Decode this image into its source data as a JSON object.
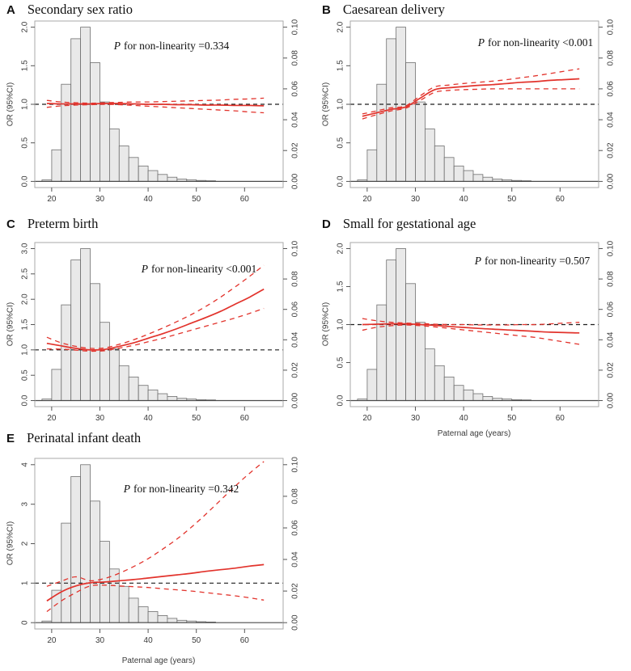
{
  "axes": {
    "y_label": "OR (95%CI)",
    "x_label": "Paternal age (years)",
    "p_italic": "P"
  },
  "colors": {
    "curve_red": "#e2332c",
    "hist_fill": "#e9e9e9",
    "hist_stroke": "#6f6f6f",
    "box_stroke": "#a9a9a9",
    "baseline": "#4a4a4a",
    "ref_dash": "#1f1f1f"
  },
  "histogram": {
    "bin_start": 18,
    "bin_width": 2,
    "right_axis": "relative frequency (0.00-0.10)",
    "densities": [
      0.001,
      0.0205,
      0.063,
      0.0925,
      0.1,
      0.077,
      0.0515,
      0.034,
      0.023,
      0.0155,
      0.01,
      0.007,
      0.0045,
      0.0027,
      0.0015,
      0.001,
      0.0006,
      0.0004
    ]
  },
  "chart_data": [
    {
      "type": "line",
      "letter": "A",
      "title": "Secondary sex ratio",
      "p_text": "for non-linearity =0.334",
      "xlim": [
        16.5,
        68
      ],
      "xticks": [
        20,
        30,
        40,
        50,
        60
      ],
      "ylim_left": [
        0,
        2
      ],
      "yticks_left": [
        "0.0",
        "0.5",
        "1.0",
        "1.5",
        "2.0"
      ],
      "yticks_right": [
        "0.00",
        "0.02",
        "0.04",
        "0.06",
        "0.08",
        "0.10"
      ],
      "ref_line": 1,
      "curve": {
        "x": [
          19,
          22,
          25,
          28,
          31,
          34,
          37,
          40,
          43,
          46,
          49,
          52,
          55,
          58,
          61,
          64
        ],
        "or": [
          1.01,
          1.005,
          1.005,
          1.005,
          1.01,
          1.01,
          1.005,
          1.0,
          1.0,
          0.995,
          0.995,
          0.99,
          0.99,
          0.985,
          0.985,
          0.98
        ],
        "ci_high": [
          1.05,
          1.03,
          1.02,
          1.015,
          1.02,
          1.025,
          1.03,
          1.03,
          1.035,
          1.04,
          1.045,
          1.05,
          1.055,
          1.065,
          1.07,
          1.08
        ],
        "ci_low": [
          0.96,
          0.98,
          0.99,
          0.995,
          1.0,
          0.995,
          0.985,
          0.975,
          0.965,
          0.955,
          0.945,
          0.935,
          0.925,
          0.915,
          0.9,
          0.89
        ]
      }
    },
    {
      "type": "line",
      "letter": "B",
      "title": "Caesarean delivery",
      "p_text": "for non-linearity <0.001",
      "xlim": [
        16.5,
        68
      ],
      "xticks": [
        20,
        30,
        40,
        50,
        60
      ],
      "ylim_left": [
        0,
        2
      ],
      "yticks_left": [
        "0.0",
        "0.5",
        "1.0",
        "1.5",
        "2.0"
      ],
      "yticks_right": [
        "0.00",
        "0.02",
        "0.04",
        "0.06",
        "0.08",
        "0.10"
      ],
      "ref_line": 1,
      "curve": {
        "x": [
          19,
          22,
          25,
          28,
          31,
          34,
          37,
          40,
          43,
          46,
          49,
          52,
          55,
          58,
          61,
          64
        ],
        "or": [
          0.845,
          0.89,
          0.935,
          0.965,
          1.08,
          1.19,
          1.215,
          1.23,
          1.245,
          1.255,
          1.27,
          1.285,
          1.295,
          1.31,
          1.32,
          1.33
        ],
        "ci_high": [
          0.875,
          0.915,
          0.955,
          0.98,
          1.11,
          1.225,
          1.25,
          1.27,
          1.285,
          1.3,
          1.32,
          1.345,
          1.37,
          1.4,
          1.43,
          1.46
        ],
        "ci_low": [
          0.81,
          0.865,
          0.915,
          0.95,
          1.05,
          1.155,
          1.18,
          1.19,
          1.195,
          1.2,
          1.2,
          1.2,
          1.2,
          1.2,
          1.2,
          1.2
        ]
      }
    },
    {
      "type": "line",
      "letter": "C",
      "title": "Preterm birth",
      "p_text": "for non-linearity <0.001",
      "xlim": [
        16.5,
        68
      ],
      "xticks": [
        20,
        30,
        40,
        50,
        60
      ],
      "ylim_left": [
        0,
        3
      ],
      "yticks_left": [
        "0.0",
        "0.5",
        "1.0",
        "1.5",
        "2.0",
        "2.5",
        "3.0"
      ],
      "yticks_right": [
        "0.00",
        "0.02",
        "0.04",
        "0.06",
        "0.08",
        "0.10"
      ],
      "ref_line": 1,
      "curve": {
        "x": [
          19,
          22,
          25,
          28,
          31,
          34,
          37,
          40,
          43,
          46,
          49,
          52,
          55,
          58,
          61,
          64
        ],
        "or": [
          1.13,
          1.08,
          1.03,
          1.0,
          1.01,
          1.07,
          1.14,
          1.23,
          1.32,
          1.42,
          1.53,
          1.64,
          1.76,
          1.9,
          2.04,
          2.2
        ],
        "ci_high": [
          1.25,
          1.14,
          1.07,
          1.03,
          1.04,
          1.11,
          1.2,
          1.31,
          1.43,
          1.56,
          1.7,
          1.86,
          2.04,
          2.24,
          2.45,
          2.67
        ],
        "ci_low": [
          1.02,
          1.015,
          0.995,
          0.975,
          0.985,
          1.035,
          1.09,
          1.16,
          1.23,
          1.31,
          1.39,
          1.47,
          1.55,
          1.63,
          1.72,
          1.82
        ]
      }
    },
    {
      "type": "line",
      "letter": "D",
      "title": "Small for gestational age",
      "p_text": "for non-linearity =0.507",
      "xlim": [
        16.5,
        68
      ],
      "xticks": [
        20,
        30,
        40,
        50,
        60
      ],
      "ylim_left": [
        0,
        2
      ],
      "yticks_left": [
        "0.0",
        "0.5",
        "1.0",
        "1.5",
        "2.0"
      ],
      "yticks_right": [
        "0.00",
        "0.02",
        "0.04",
        "0.06",
        "0.08",
        "0.10"
      ],
      "ref_line": 1,
      "curve": {
        "x": [
          19,
          22,
          25,
          28,
          31,
          34,
          37,
          40,
          43,
          46,
          49,
          52,
          55,
          58,
          61,
          64
        ],
        "or": [
          1.0,
          1.005,
          1.01,
          1.01,
          1.0,
          0.99,
          0.975,
          0.963,
          0.95,
          0.94,
          0.93,
          0.92,
          0.91,
          0.9,
          0.895,
          0.89
        ],
        "ci_high": [
          1.08,
          1.05,
          1.03,
          1.02,
          1.015,
          1.005,
          1.0,
          1.0,
          0.995,
          0.995,
          0.995,
          1.0,
          1.0,
          1.01,
          1.02,
          1.03
        ],
        "ci_low": [
          0.925,
          0.965,
          0.985,
          0.995,
          0.985,
          0.97,
          0.95,
          0.93,
          0.91,
          0.89,
          0.87,
          0.85,
          0.83,
          0.8,
          0.77,
          0.74
        ]
      }
    },
    {
      "type": "line",
      "letter": "E",
      "title": "Perinatal infant death",
      "p_text": "for non-linearity =0.342",
      "xlim": [
        16.5,
        68
      ],
      "xticks": [
        20,
        30,
        40,
        50,
        60
      ],
      "ylim_left": [
        0,
        4
      ],
      "yticks_left": [
        "0",
        "1",
        "2",
        "3",
        "4"
      ],
      "yticks_right": [
        "0.00",
        "0.02",
        "0.04",
        "0.06",
        "0.08",
        "0.10"
      ],
      "ref_line": 1,
      "curve": {
        "x": [
          19,
          22,
          25,
          28,
          31,
          34,
          37,
          40,
          43,
          46,
          49,
          52,
          55,
          58,
          61,
          64
        ],
        "or": [
          0.55,
          0.78,
          0.93,
          1.01,
          1.03,
          1.06,
          1.09,
          1.13,
          1.17,
          1.21,
          1.25,
          1.3,
          1.34,
          1.38,
          1.43,
          1.47
        ],
        "ci_high": [
          0.92,
          1.05,
          1.16,
          1.06,
          1.12,
          1.25,
          1.42,
          1.62,
          1.86,
          2.12,
          2.42,
          2.75,
          3.1,
          3.45,
          3.78,
          4.08
        ],
        "ci_low": [
          0.28,
          0.55,
          0.76,
          0.93,
          0.95,
          0.93,
          0.91,
          0.89,
          0.86,
          0.83,
          0.8,
          0.76,
          0.72,
          0.68,
          0.63,
          0.57
        ]
      }
    }
  ]
}
